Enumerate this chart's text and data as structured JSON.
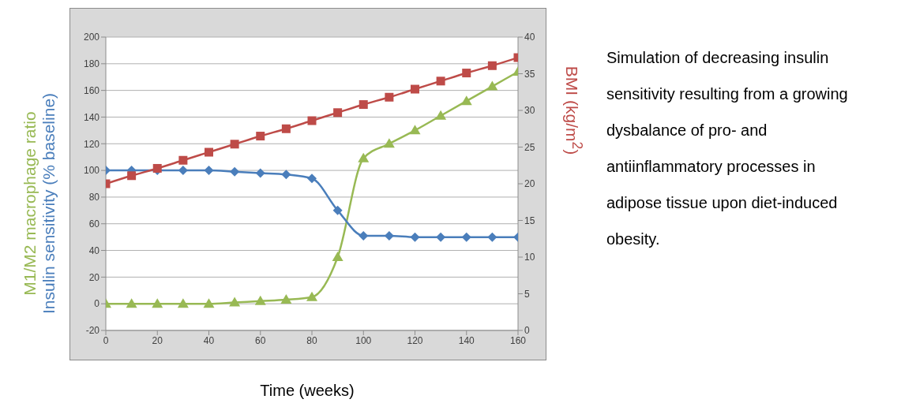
{
  "chart_data": {
    "type": "line",
    "xlabel": "Time (weeks)",
    "x": [
      0,
      10,
      20,
      30,
      40,
      50,
      60,
      70,
      80,
      90,
      100,
      110,
      120,
      130,
      140,
      150,
      160
    ],
    "xlim": [
      0,
      160
    ],
    "xticks": [
      0,
      20,
      40,
      60,
      80,
      100,
      120,
      140,
      160
    ],
    "ylim": [
      -20,
      200
    ],
    "yticks": [
      -20,
      0,
      20,
      40,
      60,
      80,
      100,
      120,
      140,
      160,
      180,
      200
    ],
    "y2lim": [
      0,
      40
    ],
    "y2ticks": [
      0,
      5,
      10,
      15,
      20,
      25,
      30,
      35,
      40
    ],
    "grid": "y",
    "line_style": "solid",
    "series": [
      {
        "name": "M1/M2 macrophage ratio",
        "color": "#98b954",
        "marker": "triangle",
        "values": [
          0,
          0,
          0,
          0,
          0,
          1,
          2,
          3,
          5,
          35,
          109,
          120,
          130,
          141,
          152,
          163,
          174
        ]
      },
      {
        "name": "Insulin sensitivity (% baseline)",
        "color": "#4a7ebb",
        "marker": "diamond",
        "values": [
          100,
          100,
          100,
          100,
          100,
          99,
          98,
          97,
          94,
          70,
          51,
          51,
          50,
          50,
          50,
          50,
          50
        ]
      },
      {
        "name": "BMI (kg/m$^{2}$)",
        "color": "#be4b48",
        "marker": "square",
        "axis": "y2",
        "values": [
          20,
          21.1,
          22.1,
          23.2,
          24.3,
          25.4,
          26.5,
          27.5,
          28.6,
          29.7,
          30.8,
          31.8,
          32.9,
          34,
          35.1,
          36.1,
          37.2
        ]
      }
    ],
    "annotations": [
      "Simulation of decreasing insulin sensitivity resulting from a growing dysbalance of pro- and antiinflammatory processes in adipose tissue upon diet-induced obesity."
    ]
  }
}
